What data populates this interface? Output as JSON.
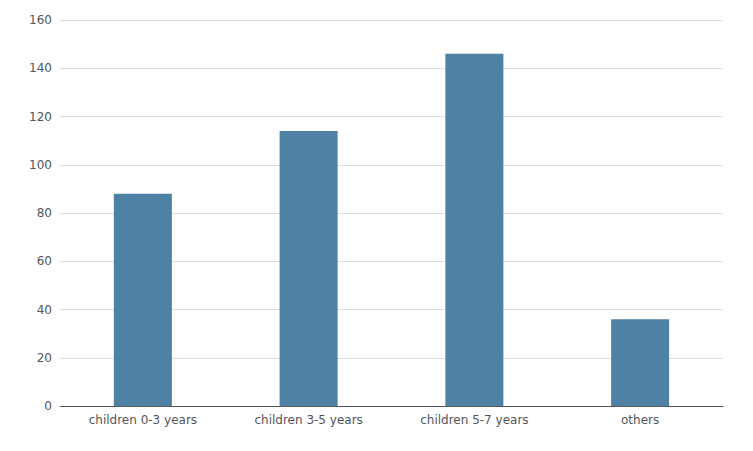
{
  "chart_data": {
    "type": "bar",
    "categories": [
      "children 0-3 years",
      "children 3-5 years",
      "children 5-7 years",
      "others"
    ],
    "values": [
      88,
      114,
      146,
      36
    ],
    "color": "#4f81a4",
    "ylim": [
      0,
      160
    ],
    "yticks": [
      0,
      20,
      40,
      60,
      80,
      100,
      120,
      140,
      160
    ],
    "grid": true
  }
}
